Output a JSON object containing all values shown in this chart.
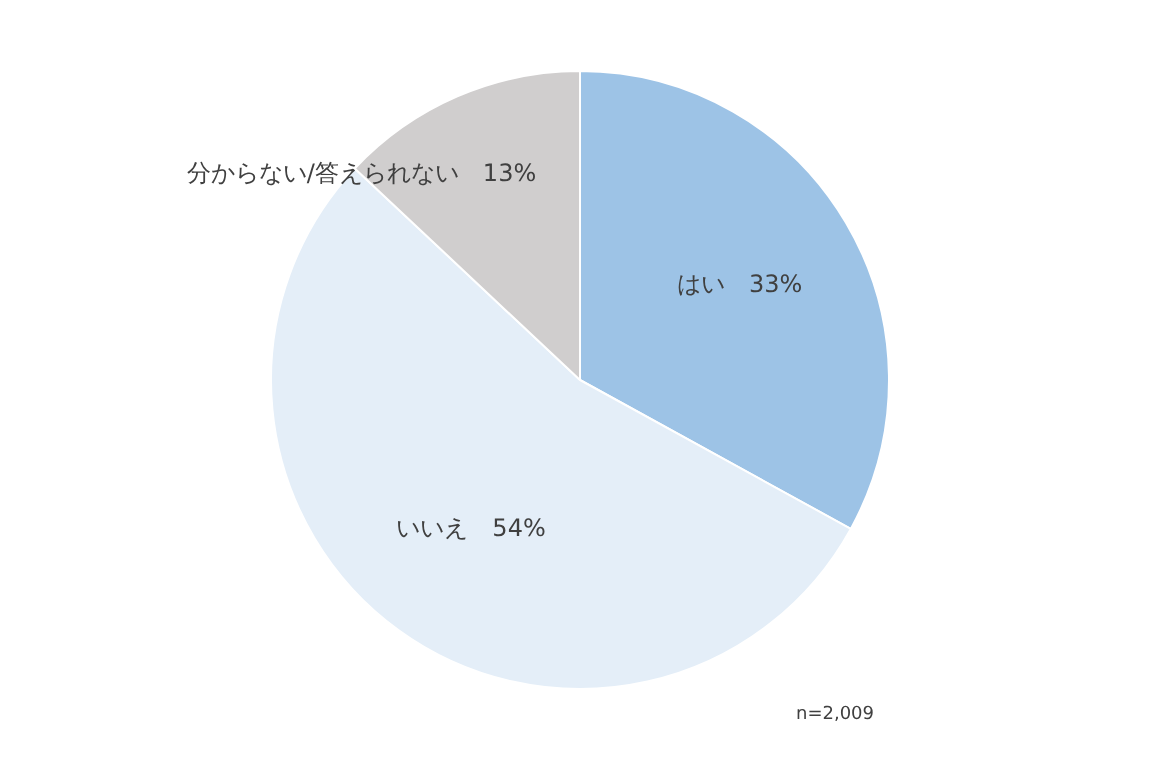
{
  "chart_data": {
    "type": "pie",
    "categories": [
      "はい",
      "いいえ",
      "分からない/答えられない"
    ],
    "values": [
      33,
      54,
      13
    ],
    "value_labels": [
      "33%",
      "54%",
      "13%"
    ],
    "colors": [
      "#9dc3e6",
      "#e4eef8",
      "#d0cece"
    ],
    "legend": false,
    "annotations": [
      "n=2,009"
    ]
  }
}
